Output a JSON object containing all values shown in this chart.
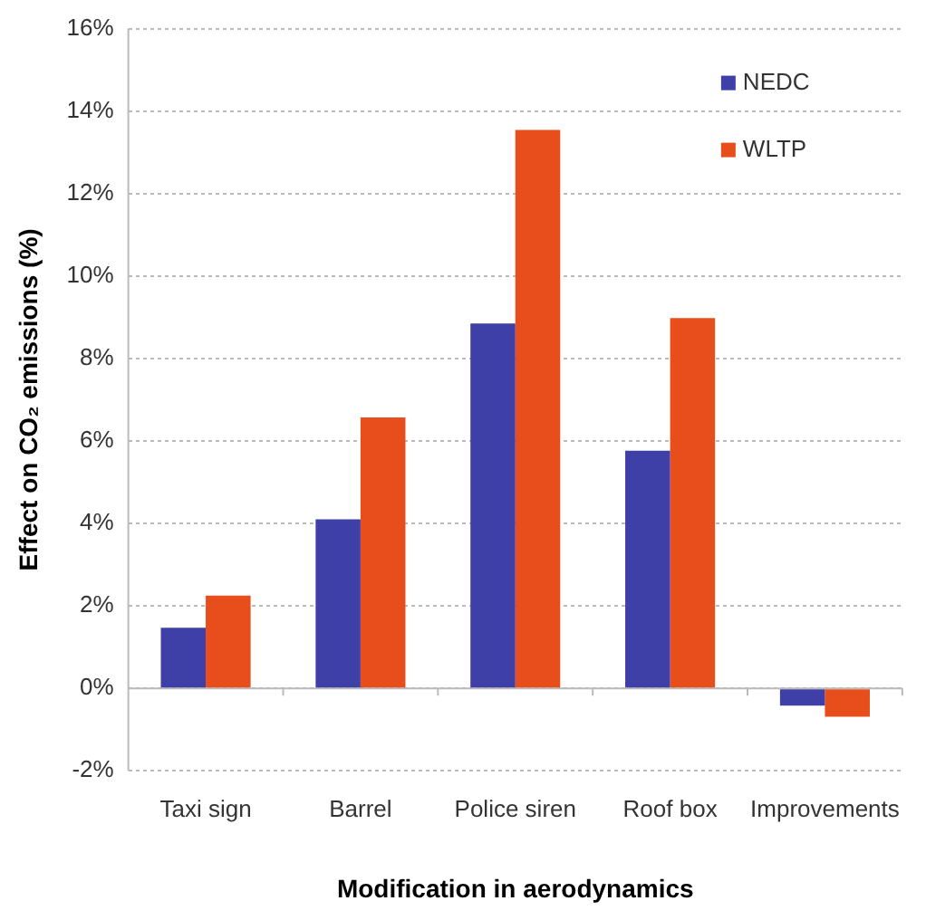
{
  "chart_data": {
    "type": "bar",
    "xlabel": "Modification in aerodynamics",
    "ylabel": "Effect on CO₂ emissions (%)",
    "categories": [
      "Taxi sign",
      "Barrel",
      "Police siren",
      "Roof box",
      "Improvements"
    ],
    "series": [
      {
        "name": "NEDC",
        "color": "#3f3fa8",
        "values": [
          1.47,
          4.1,
          8.85,
          5.76,
          -0.42
        ]
      },
      {
        "name": "WLTP",
        "color": "#e84e1b",
        "values": [
          2.25,
          6.57,
          13.54,
          8.98,
          -0.69
        ]
      }
    ],
    "ylim": [
      -2,
      16
    ],
    "yticks": [
      {
        "value": -2,
        "label": "-2%"
      },
      {
        "value": 0,
        "label": "0%"
      },
      {
        "value": 2,
        "label": "2%"
      },
      {
        "value": 4,
        "label": "4%"
      },
      {
        "value": 6,
        "label": "6%"
      },
      {
        "value": 8,
        "label": "8%"
      },
      {
        "value": 10,
        "label": "10%"
      },
      {
        "value": 12,
        "label": "12%"
      },
      {
        "value": 14,
        "label": "14%"
      },
      {
        "value": 16,
        "label": "16%"
      }
    ],
    "grid": "y",
    "legend": "top right"
  }
}
